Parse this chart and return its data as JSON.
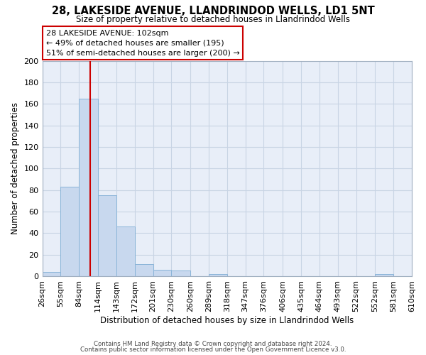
{
  "title": "28, LAKESIDE AVENUE, LLANDRINDOD WELLS, LD1 5NT",
  "subtitle": "Size of property relative to detached houses in Llandrindod Wells",
  "xlabel": "Distribution of detached houses by size in Llandrindod Wells",
  "ylabel": "Number of detached properties",
  "bin_edges": [
    26,
    55,
    84,
    114,
    143,
    172,
    201,
    230,
    260,
    289,
    318,
    347,
    376,
    406,
    435,
    464,
    493,
    522,
    552,
    581,
    610
  ],
  "bar_heights": [
    4,
    83,
    165,
    75,
    46,
    11,
    6,
    5,
    0,
    2,
    0,
    0,
    0,
    0,
    0,
    0,
    0,
    0,
    2,
    0
  ],
  "bar_color": "#c8d8ee",
  "bar_edgecolor": "#8ab4d8",
  "bar_linewidth": 0.7,
  "grid_color": "#c8d4e4",
  "plot_bg_color": "#e8eef8",
  "fig_bg_color": "#ffffff",
  "property_line_x": 102,
  "property_line_color": "#cc0000",
  "annotation_line1": "28 LAKESIDE AVENUE: 102sqm",
  "annotation_line2": "← 49% of detached houses are smaller (195)",
  "annotation_line3": "51% of semi-detached houses are larger (200) →",
  "annotation_box_color": "#ffffff",
  "annotation_box_edgecolor": "#cc0000",
  "ylim": [
    0,
    200
  ],
  "yticks": [
    0,
    20,
    40,
    60,
    80,
    100,
    120,
    140,
    160,
    180,
    200
  ],
  "footer_line1": "Contains HM Land Registry data © Crown copyright and database right 2024.",
  "footer_line2": "Contains public sector information licensed under the Open Government Licence v3.0."
}
